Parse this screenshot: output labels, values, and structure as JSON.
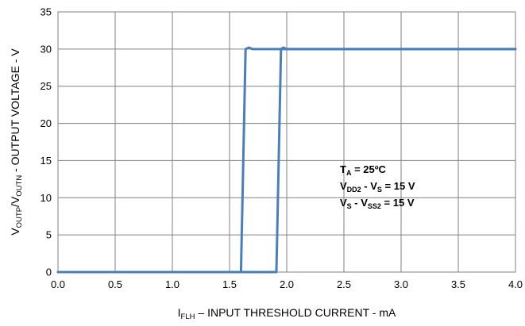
{
  "chart_data": {
    "type": "line",
    "xlabel": {
      "main": "I",
      "sub": "FLH",
      "rest": " – INPUT THRESHOLD CURRENT - mA"
    },
    "ylabel": {
      "p1": "V",
      "s1": "OUTP",
      "p2": "/V",
      "s2": "OUTN",
      "p3": " - OUTPUT VOLTAGE - V"
    },
    "xlim": [
      0,
      4
    ],
    "ylim": [
      0,
      35
    ],
    "xticks": [
      "0.0",
      "0.5",
      "1.0",
      "1.5",
      "2.0",
      "2.5",
      "3.0",
      "3.5",
      "4.0"
    ],
    "yticks": [
      "0",
      "5",
      "10",
      "15",
      "20",
      "25",
      "30",
      "35"
    ],
    "grid": true,
    "annotation": [
      {
        "main": "T",
        "sub": "A",
        "rest": " = 25ºC"
      },
      {
        "main": "V",
        "sub": "DD2",
        "mid": " - V",
        "sub2": "S",
        "rest": " = 15 V"
      },
      {
        "main": "V",
        "sub": "S",
        "mid": " - V",
        "sub2": "SS2",
        "rest": " = 15 V"
      }
    ],
    "color": "#4a7ebb",
    "series": [
      {
        "x": [
          0,
          1.6,
          1.64,
          1.67,
          1.7,
          4.0
        ],
        "y": [
          0,
          0,
          30,
          30.2,
          30,
          30
        ]
      },
      {
        "x": [
          0,
          1.91,
          1.95,
          1.97,
          2.0,
          4.0
        ],
        "y": [
          0,
          0,
          30,
          30.2,
          30,
          30
        ]
      }
    ]
  }
}
